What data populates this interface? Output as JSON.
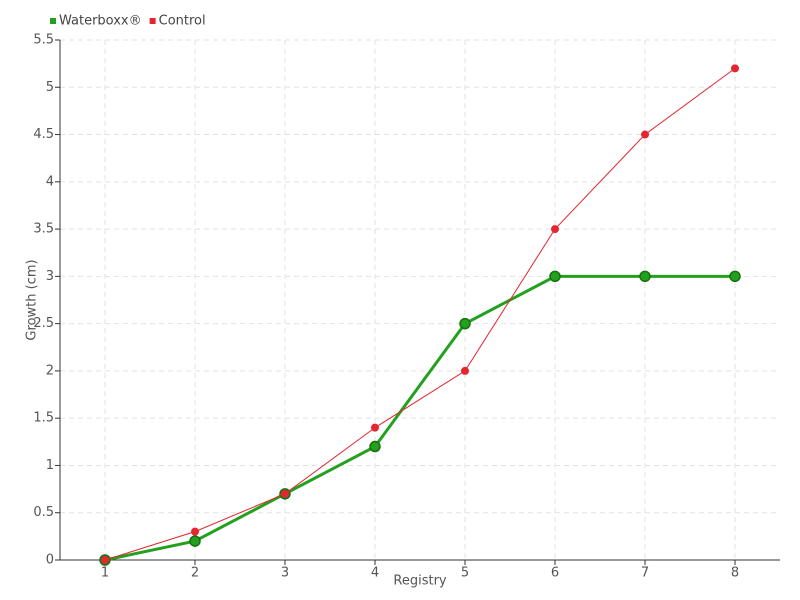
{
  "chart_data": {
    "type": "line",
    "x_label": "Registry",
    "y_label": "Growth (cm)",
    "x": [
      1,
      2,
      3,
      4,
      5,
      6,
      7,
      8
    ],
    "series": [
      {
        "name": "Waterboxx®",
        "color": "#22a01e",
        "values": [
          0,
          0.2,
          0.7,
          1.2,
          2.5,
          3,
          3,
          3
        ]
      },
      {
        "name": "Control",
        "color": "#e3262f",
        "values": [
          0,
          0.3,
          0.7,
          1.4,
          2,
          3.5,
          4.5,
          5.2
        ]
      }
    ],
    "xlim": [
      0.5,
      8.5
    ],
    "xticks": [
      1,
      2,
      3,
      4,
      5,
      6,
      7,
      8
    ],
    "ylim": [
      0,
      5.5
    ],
    "yticks": [
      0,
      0.5,
      1,
      1.5,
      2,
      2.5,
      3,
      3.5,
      4,
      4.5,
      5,
      5.5
    ],
    "grid": true,
    "legend": "top-left"
  }
}
